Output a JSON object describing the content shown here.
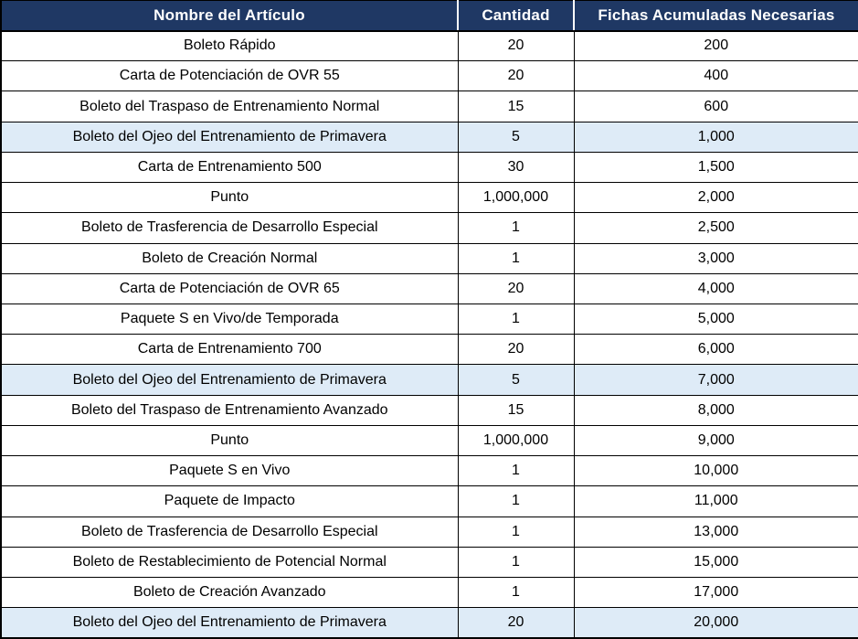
{
  "table": {
    "columns": [
      {
        "id": "name",
        "label": "Nombre del Artículo"
      },
      {
        "id": "cantidad",
        "label": "Cantidad"
      },
      {
        "id": "fichas",
        "label": "Fichas Acumuladas Necesarias"
      }
    ],
    "rows": [
      {
        "name": "Boleto Rápido",
        "cantidad": "20",
        "fichas": "200",
        "highlighted": false
      },
      {
        "name": "Carta de Potenciación de OVR 55",
        "cantidad": "20",
        "fichas": "400",
        "highlighted": false
      },
      {
        "name": "Boleto del Traspaso de Entrenamiento Normal",
        "cantidad": "15",
        "fichas": "600",
        "highlighted": false
      },
      {
        "name": "Boleto del Ojeo del Entrenamiento de Primavera",
        "cantidad": "5",
        "fichas": "1,000",
        "highlighted": true
      },
      {
        "name": "Carta de Entrenamiento 500",
        "cantidad": "30",
        "fichas": "1,500",
        "highlighted": false
      },
      {
        "name": "Punto",
        "cantidad": "1,000,000",
        "fichas": "2,000",
        "highlighted": false
      },
      {
        "name": "Boleto de Trasferencia de Desarrollo Especial",
        "cantidad": "1",
        "fichas": "2,500",
        "highlighted": false
      },
      {
        "name": "Boleto de Creación Normal",
        "cantidad": "1",
        "fichas": "3,000",
        "highlighted": false
      },
      {
        "name": "Carta de Potenciación de OVR 65",
        "cantidad": "20",
        "fichas": "4,000",
        "highlighted": false
      },
      {
        "name": "Paquete S en Vivo/de Temporada",
        "cantidad": "1",
        "fichas": "5,000",
        "highlighted": false
      },
      {
        "name": "Carta de Entrenamiento 700",
        "cantidad": "20",
        "fichas": "6,000",
        "highlighted": false
      },
      {
        "name": "Boleto del Ojeo del Entrenamiento de Primavera",
        "cantidad": "5",
        "fichas": "7,000",
        "highlighted": true
      },
      {
        "name": "Boleto del Traspaso de Entrenamiento Avanzado",
        "cantidad": "15",
        "fichas": "8,000",
        "highlighted": false
      },
      {
        "name": "Punto",
        "cantidad": "1,000,000",
        "fichas": "9,000",
        "highlighted": false
      },
      {
        "name": "Paquete S en Vivo",
        "cantidad": "1",
        "fichas": "10,000",
        "highlighted": false
      },
      {
        "name": "Paquete de Impacto",
        "cantidad": "1",
        "fichas": "11,000",
        "highlighted": false
      },
      {
        "name": "Boleto de Trasferencia de Desarrollo Especial",
        "cantidad": "1",
        "fichas": "13,000",
        "highlighted": false
      },
      {
        "name": "Boleto de Restablecimiento de Potencial Normal",
        "cantidad": "1",
        "fichas": "15,000",
        "highlighted": false
      },
      {
        "name": "Boleto de Creación Avanzado",
        "cantidad": "1",
        "fichas": "17,000",
        "highlighted": false
      },
      {
        "name": "Boleto del Ojeo del Entrenamiento de Primavera",
        "cantidad": "20",
        "fichas": "20,000",
        "highlighted": true
      }
    ]
  },
  "colors": {
    "header_bg": "#1F3864",
    "header_text": "#FFFFFF",
    "header_divider": "#FFFFFF",
    "grid_border": "#000000",
    "row_bg": "#FFFFFF",
    "row_highlight_bg": "#DEEBF7",
    "body_text": "#000000"
  }
}
